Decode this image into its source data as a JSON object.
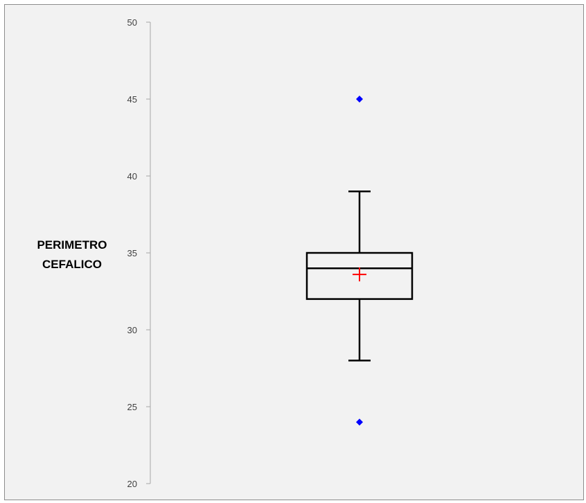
{
  "header": {
    "cropped_text": ""
  },
  "chart_data": {
    "type": "box",
    "ylabel_lines": [
      "PERIMETRO",
      "CEFALICO"
    ],
    "ylim": [
      20,
      50
    ],
    "yticks": [
      20,
      25,
      30,
      35,
      40,
      45,
      50
    ],
    "grid": false,
    "series": [
      {
        "whisker_low": 28,
        "q1": 32,
        "median": 34,
        "q3": 35,
        "whisker_high": 39,
        "mean": 33.6,
        "outliers": [
          45,
          24
        ]
      }
    ],
    "colors": {
      "box": "#000000",
      "mean_marker": "#ff0000",
      "outlier": "#0000ff",
      "axis": "#a6a6a6",
      "background": "#f2f2f2"
    }
  }
}
